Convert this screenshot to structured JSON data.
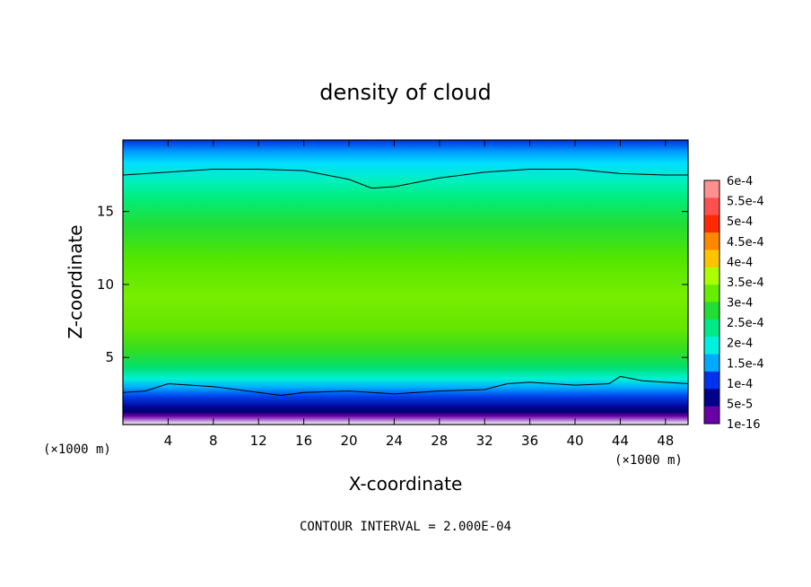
{
  "chart_data": {
    "type": "heatmap",
    "title": "density of cloud",
    "xlabel": "X-coordinate",
    "ylabel": "Z-coordinate",
    "x_unit_left": "(×1000 m)",
    "x_unit_right": "(×1000 m)",
    "footer": "CONTOUR INTERVAL = 2.000E-04",
    "xlim": [
      0,
      50
    ],
    "ylim": [
      0.4,
      19.9
    ],
    "x_ticks": [
      4,
      8,
      12,
      16,
      20,
      24,
      28,
      32,
      36,
      40,
      44,
      48
    ],
    "y_ticks": [
      5,
      10,
      15
    ],
    "colorbar": {
      "labels": [
        "6e-4",
        "5.5e-4",
        "5e-4",
        "4.5e-4",
        "4e-4",
        "3.5e-4",
        "3e-4",
        "2.5e-4",
        "2e-4",
        "1.5e-4",
        "1e-4",
        "5e-5",
        "1e-16"
      ],
      "colors": [
        "#ff9090",
        "#ff4f4f",
        "#ff2a00",
        "#ff8800",
        "#ffc400",
        "#aaff00",
        "#66ee00",
        "#22dd33",
        "#00e888",
        "#00f0e0",
        "#00aaff",
        "#0033ee",
        "#00008c",
        "#6a00a8"
      ]
    },
    "contour_lines": [
      {
        "level": "2e-4",
        "x": [
          0,
          4,
          8,
          12,
          16,
          20,
          22,
          24,
          28,
          32,
          36,
          40,
          44,
          48,
          50
        ],
        "z": [
          17.5,
          17.7,
          17.9,
          17.9,
          17.8,
          17.2,
          16.6,
          16.7,
          17.3,
          17.7,
          17.9,
          17.9,
          17.6,
          17.5,
          17.5
        ]
      },
      {
        "level": "2e-4",
        "x": [
          0,
          2,
          4,
          8,
          12,
          14,
          16,
          20,
          24,
          28,
          32,
          34,
          36,
          40,
          43,
          44,
          46,
          48,
          50
        ],
        "z": [
          2.6,
          2.7,
          3.2,
          3.0,
          2.6,
          2.4,
          2.6,
          2.7,
          2.5,
          2.7,
          2.8,
          3.2,
          3.3,
          3.1,
          3.2,
          3.7,
          3.4,
          3.3,
          3.2
        ]
      }
    ],
    "field_summary": [
      {
        "z_range": [
          0.4,
          1.2
        ],
        "value": "1e-16"
      },
      {
        "z_range": [
          1.2,
          2.0
        ],
        "value": "5e-5 to 1e-4"
      },
      {
        "z_range": [
          2.0,
          3.0
        ],
        "value": "1e-4 to 2e-4"
      },
      {
        "z_range": [
          3.0,
          6.0
        ],
        "value": "2e-4 to 3e-4"
      },
      {
        "z_range": [
          6.0,
          12.0
        ],
        "value": "3e-4 to 4e-4"
      },
      {
        "z_range": [
          12.0,
          17.5
        ],
        "value": "2.5e-4 to 3e-4"
      },
      {
        "z_range": [
          17.5,
          19.9
        ],
        "value": "5e-5 to 2e-4"
      }
    ]
  }
}
